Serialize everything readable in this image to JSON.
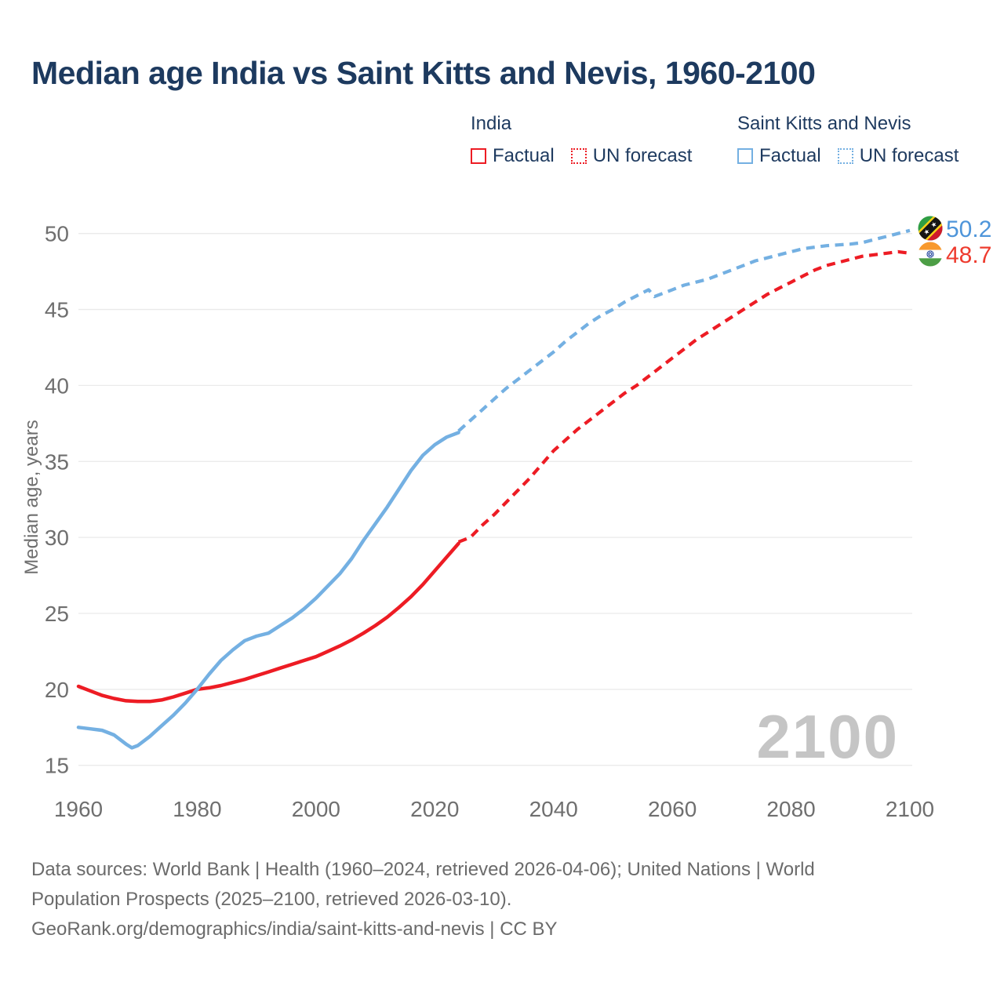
{
  "header": {
    "title": "Median age India vs Saint Kitts and Nevis, 1960-2100"
  },
  "legend": {
    "groups": [
      {
        "country": "India",
        "items": [
          {
            "label": "Factual",
            "style": "solid",
            "color": "#ed1c24"
          },
          {
            "label": "UN forecast",
            "style": "dotted",
            "color": "#ed1c24"
          }
        ]
      },
      {
        "country": "Saint Kitts and Nevis",
        "items": [
          {
            "label": "Factual",
            "style": "solid",
            "color": "#74b0e2"
          },
          {
            "label": "UN forecast",
            "style": "dotted",
            "color": "#74b0e2"
          }
        ]
      }
    ]
  },
  "chart_data": {
    "type": "line",
    "title": "Median age India vs Saint Kitts and Nevis, 1960-2100",
    "xlabel": "",
    "ylabel": "Median age, years",
    "watermark": "2100",
    "grid": true,
    "xlim": [
      1960,
      2110
    ],
    "ylim": [
      15,
      50
    ],
    "x_ticks": [
      1960,
      1980,
      2000,
      2020,
      2040,
      2060,
      2080,
      2100
    ],
    "y_ticks": [
      15,
      20,
      25,
      30,
      35,
      40,
      45,
      50
    ],
    "series": [
      {
        "name": "India — Factual",
        "color": "#ed1c24",
        "style": "solid",
        "points": [
          [
            1960,
            20.2
          ],
          [
            1962,
            19.9
          ],
          [
            1964,
            19.6
          ],
          [
            1966,
            19.4
          ],
          [
            1968,
            19.25
          ],
          [
            1970,
            19.2
          ],
          [
            1972,
            19.2
          ],
          [
            1974,
            19.3
          ],
          [
            1976,
            19.5
          ],
          [
            1978,
            19.75
          ],
          [
            1980,
            20.0
          ],
          [
            1982,
            20.1
          ],
          [
            1984,
            20.25
          ],
          [
            1986,
            20.45
          ],
          [
            1988,
            20.65
          ],
          [
            1990,
            20.9
          ],
          [
            1992,
            21.15
          ],
          [
            1994,
            21.4
          ],
          [
            1996,
            21.65
          ],
          [
            1998,
            21.9
          ],
          [
            2000,
            22.15
          ],
          [
            2002,
            22.5
          ],
          [
            2004,
            22.85
          ],
          [
            2006,
            23.25
          ],
          [
            2008,
            23.7
          ],
          [
            2010,
            24.2
          ],
          [
            2012,
            24.75
          ],
          [
            2014,
            25.4
          ],
          [
            2016,
            26.1
          ],
          [
            2018,
            26.9
          ],
          [
            2020,
            27.8
          ],
          [
            2022,
            28.7
          ],
          [
            2024,
            29.6
          ]
        ]
      },
      {
        "name": "India — UN forecast",
        "color": "#ed1c24",
        "style": "dashed",
        "points": [
          [
            2024,
            29.7
          ],
          [
            2026,
            30.0
          ],
          [
            2028,
            30.8
          ],
          [
            2030,
            31.5
          ],
          [
            2032,
            32.3
          ],
          [
            2034,
            33.1
          ],
          [
            2036,
            33.9
          ],
          [
            2038,
            34.8
          ],
          [
            2040,
            35.7
          ],
          [
            2042,
            36.4
          ],
          [
            2044,
            37.1
          ],
          [
            2046,
            37.7
          ],
          [
            2048,
            38.3
          ],
          [
            2050,
            38.9
          ],
          [
            2052,
            39.5
          ],
          [
            2054,
            40.0
          ],
          [
            2056,
            40.6
          ],
          [
            2058,
            41.2
          ],
          [
            2060,
            41.8
          ],
          [
            2062,
            42.4
          ],
          [
            2064,
            43.0
          ],
          [
            2066,
            43.5
          ],
          [
            2068,
            44.0
          ],
          [
            2070,
            44.5
          ],
          [
            2072,
            45.0
          ],
          [
            2074,
            45.5
          ],
          [
            2076,
            46.0
          ],
          [
            2078,
            46.4
          ],
          [
            2080,
            46.8
          ],
          [
            2082,
            47.2
          ],
          [
            2084,
            47.6
          ],
          [
            2086,
            47.9
          ],
          [
            2088,
            48.1
          ],
          [
            2090,
            48.3
          ],
          [
            2092,
            48.5
          ],
          [
            2094,
            48.6
          ],
          [
            2096,
            48.7
          ],
          [
            2098,
            48.8
          ],
          [
            2100,
            48.7
          ]
        ]
      },
      {
        "name": "Saint Kitts and Nevis — Factual",
        "color": "#74b0e2",
        "style": "solid",
        "points": [
          [
            1960,
            17.5
          ],
          [
            1962,
            17.4
          ],
          [
            1964,
            17.3
          ],
          [
            1966,
            17.0
          ],
          [
            1968,
            16.4
          ],
          [
            1969,
            16.15
          ],
          [
            1970,
            16.3
          ],
          [
            1972,
            16.9
          ],
          [
            1974,
            17.6
          ],
          [
            1976,
            18.3
          ],
          [
            1978,
            19.1
          ],
          [
            1980,
            20.0
          ],
          [
            1982,
            21.0
          ],
          [
            1984,
            21.9
          ],
          [
            1986,
            22.6
          ],
          [
            1988,
            23.2
          ],
          [
            1990,
            23.5
          ],
          [
            1992,
            23.7
          ],
          [
            1994,
            24.2
          ],
          [
            1996,
            24.7
          ],
          [
            1998,
            25.3
          ],
          [
            2000,
            26.0
          ],
          [
            2002,
            26.8
          ],
          [
            2004,
            27.6
          ],
          [
            2006,
            28.6
          ],
          [
            2008,
            29.8
          ],
          [
            2010,
            30.9
          ],
          [
            2012,
            32.0
          ],
          [
            2014,
            33.2
          ],
          [
            2016,
            34.4
          ],
          [
            2018,
            35.4
          ],
          [
            2020,
            36.1
          ],
          [
            2022,
            36.6
          ],
          [
            2024,
            36.9
          ]
        ]
      },
      {
        "name": "Saint Kitts and Nevis — UN forecast",
        "color": "#74b0e2",
        "style": "dashed",
        "points": [
          [
            2024,
            37.0
          ],
          [
            2026,
            37.7
          ],
          [
            2028,
            38.4
          ],
          [
            2030,
            39.1
          ],
          [
            2032,
            39.8
          ],
          [
            2034,
            40.4
          ],
          [
            2036,
            41.0
          ],
          [
            2038,
            41.6
          ],
          [
            2040,
            42.2
          ],
          [
            2042,
            42.9
          ],
          [
            2044,
            43.5
          ],
          [
            2046,
            44.1
          ],
          [
            2048,
            44.6
          ],
          [
            2050,
            45.0
          ],
          [
            2052,
            45.5
          ],
          [
            2054,
            45.9
          ],
          [
            2056,
            46.3
          ],
          [
            2057,
            45.85
          ],
          [
            2058,
            46.0
          ],
          [
            2060,
            46.3
          ],
          [
            2062,
            46.6
          ],
          [
            2064,
            46.8
          ],
          [
            2066,
            47.0
          ],
          [
            2068,
            47.3
          ],
          [
            2070,
            47.6
          ],
          [
            2072,
            47.9
          ],
          [
            2074,
            48.2
          ],
          [
            2076,
            48.4
          ],
          [
            2078,
            48.6
          ],
          [
            2080,
            48.8
          ],
          [
            2082,
            49.0
          ],
          [
            2084,
            49.1
          ],
          [
            2086,
            49.2
          ],
          [
            2088,
            49.25
          ],
          [
            2090,
            49.3
          ],
          [
            2092,
            49.4
          ],
          [
            2094,
            49.6
          ],
          [
            2096,
            49.8
          ],
          [
            2098,
            50.0
          ],
          [
            2100,
            50.2
          ]
        ]
      }
    ],
    "end_labels": [
      {
        "series": "Saint Kitts and Nevis",
        "value": "50.2",
        "color": "#4e95da",
        "flag": "saint-kitts-and-nevis"
      },
      {
        "series": "India",
        "value": "48.7",
        "color": "#ee3b2e",
        "flag": "india"
      }
    ]
  },
  "footer": {
    "lines": [
      "Data sources: World Bank | Health (1960–2024, retrieved 2026-04-06); United Nations | World",
      "Population Prospects (2025–2100, retrieved 2026-03-10).",
      "GeoRank.org/demographics/india/saint-kitts-and-nevis | CC BY"
    ]
  }
}
